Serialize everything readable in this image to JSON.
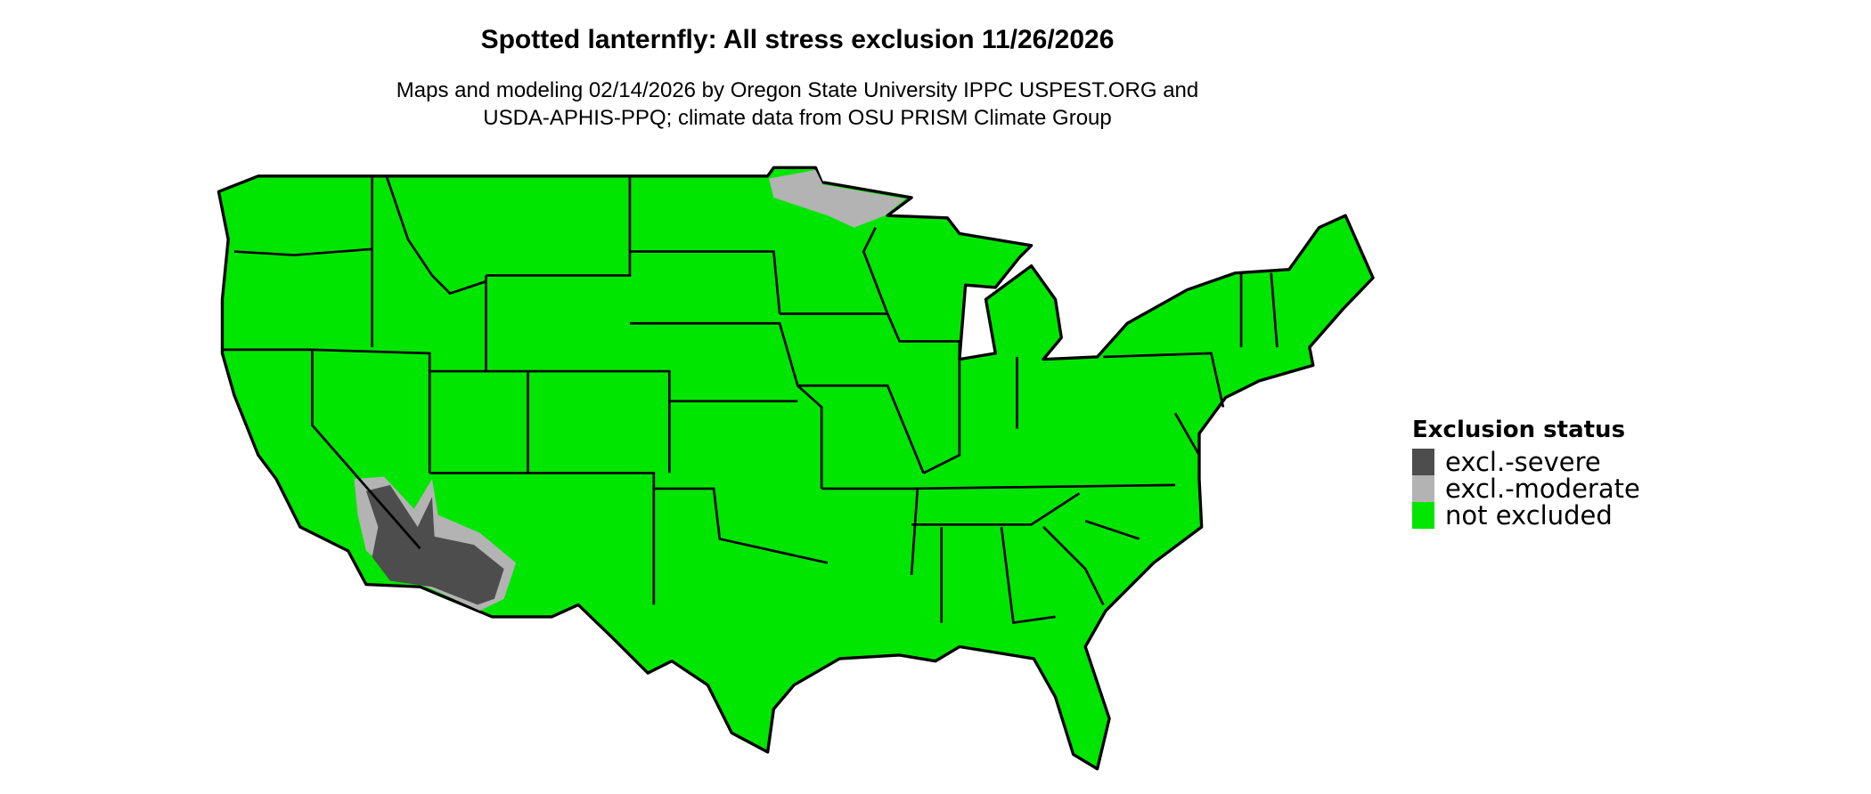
{
  "header": {
    "title": "Spotted lanternfly: All stress exclusion 11/26/2026",
    "subtitle_line1": "Maps and modeling 02/14/2026 by Oregon State University IPPC USPEST.ORG and",
    "subtitle_line2": "USDA-APHIS-PPQ; climate data from OSU PRISM Climate Group"
  },
  "legend": {
    "title": "Exclusion status",
    "items": [
      {
        "label": "excl.-severe",
        "color": "#4d4d4d"
      },
      {
        "label": "excl.-moderate",
        "color": "#b3b3b3"
      },
      {
        "label": "not excluded",
        "color": "#00e600"
      }
    ]
  },
  "map": {
    "region": "Contiguous United States",
    "base_color": "#00e600",
    "border_color": "#000000"
  }
}
